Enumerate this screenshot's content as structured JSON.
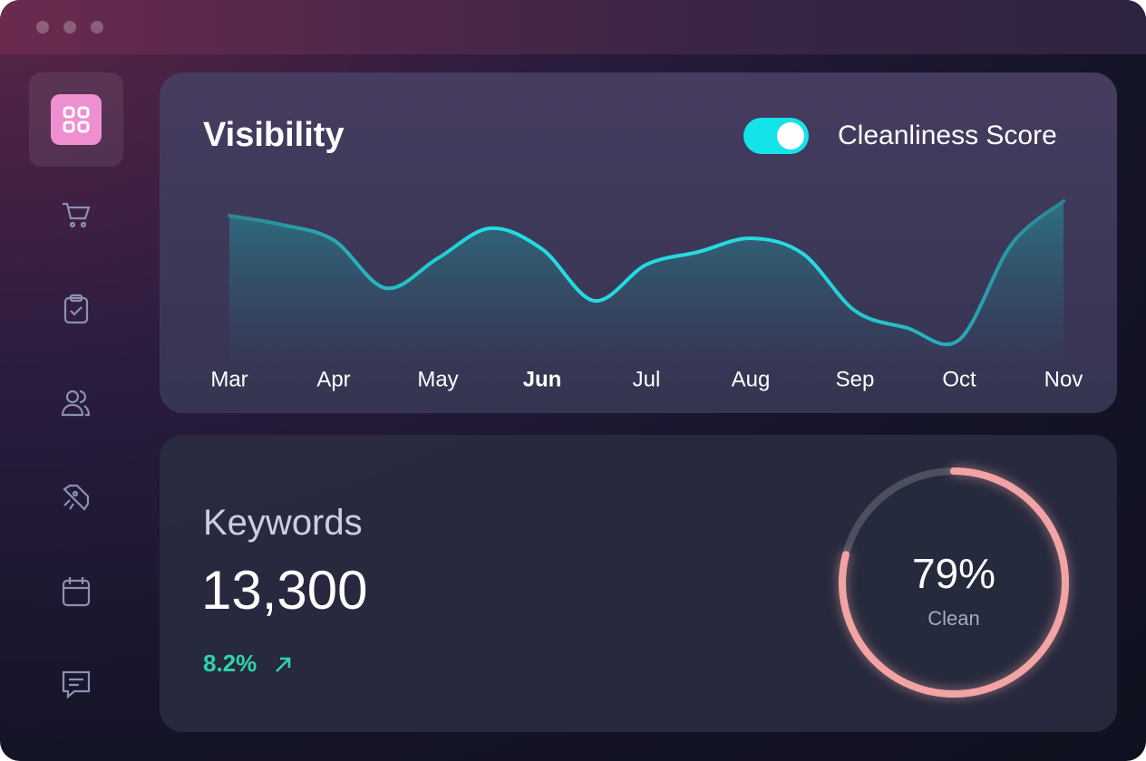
{
  "chart_data": {
    "type": "line",
    "title": "Visibility",
    "categories": [
      "Mar",
      null,
      "Apr",
      null,
      "May",
      null,
      "Jun",
      null,
      "Jul",
      null,
      "Aug",
      null,
      "Sep",
      null,
      "Oct",
      null,
      "Nov"
    ],
    "values": [
      81,
      76,
      67.5,
      41,
      57.5,
      74,
      62.5,
      34,
      54,
      61,
      68.5,
      60,
      28.5,
      19,
      12.5,
      65,
      89
    ],
    "ylim": [
      0,
      100
    ],
    "highlight": 6,
    "color": "#22e3e8"
  },
  "toggle": {
    "label": "Cleanliness Score",
    "on": true
  },
  "keywords": {
    "title": "Keywords",
    "value": "13,300",
    "change": "8.2%"
  },
  "gauge": {
    "value": 79,
    "value_label": "79%",
    "label": "Clean",
    "range": [
      0,
      100
    ],
    "color": "#f2a3a3"
  }
}
